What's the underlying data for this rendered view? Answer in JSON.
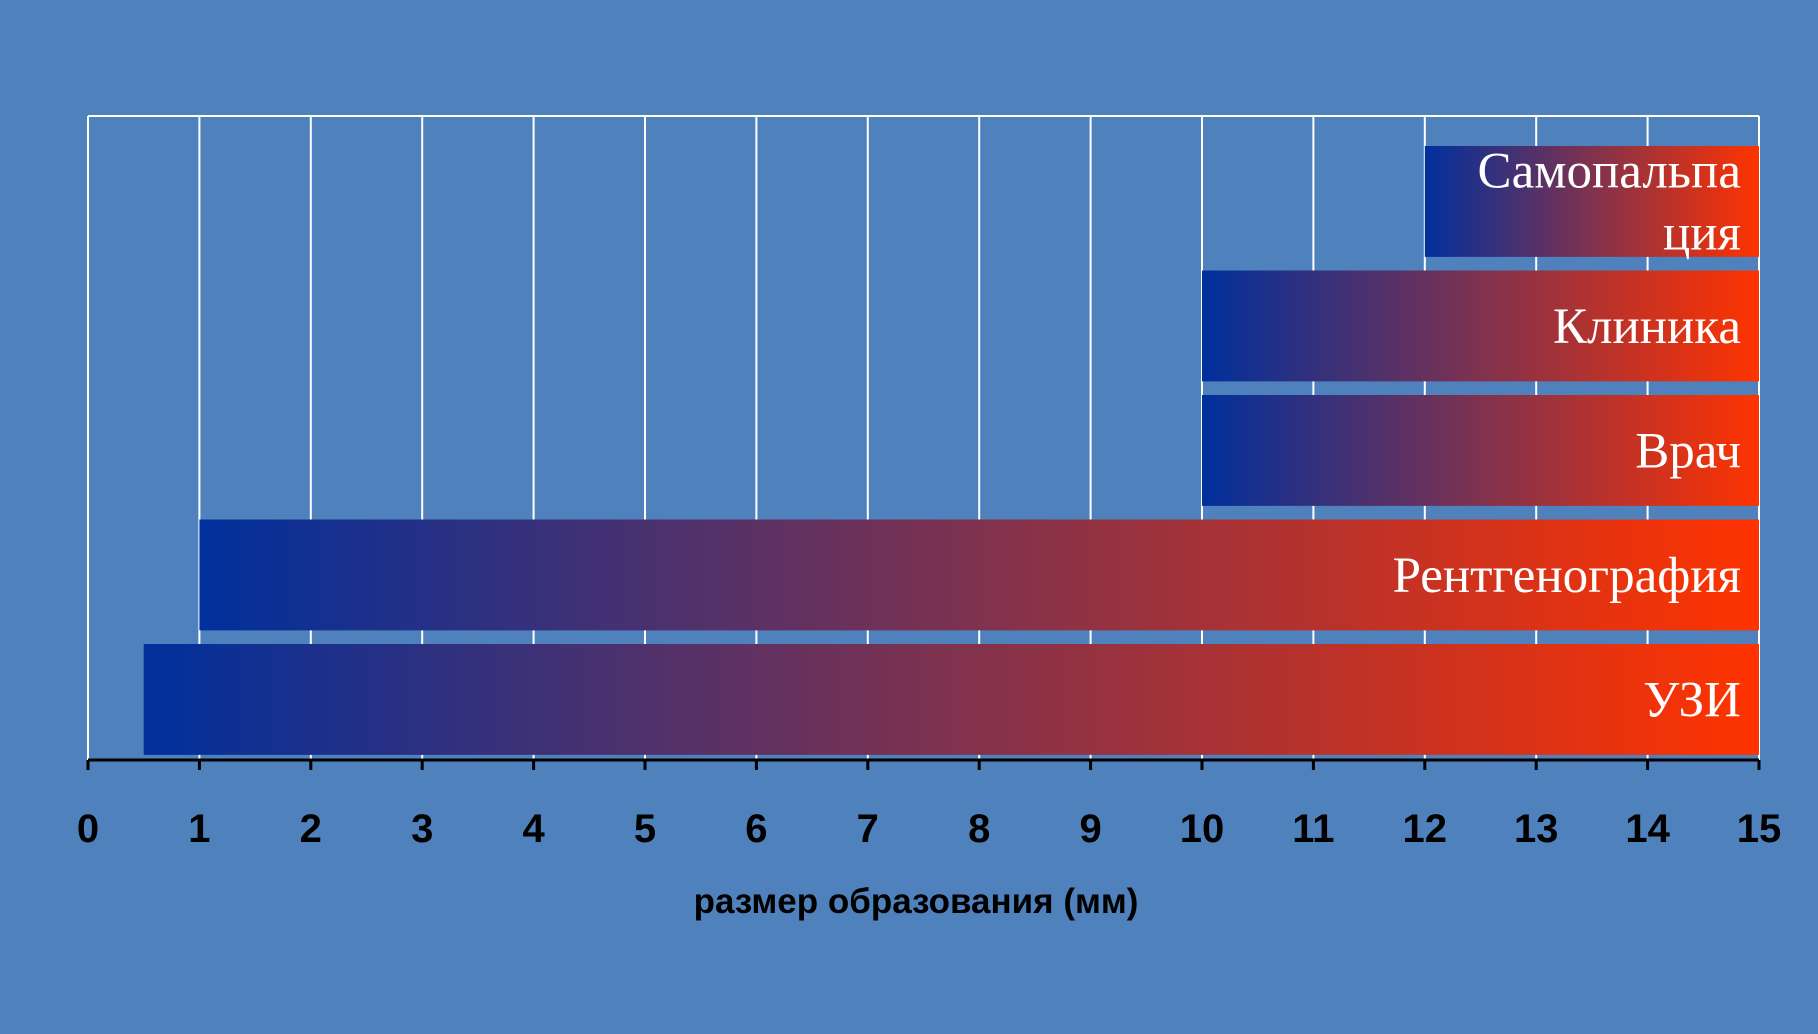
{
  "colors": {
    "background": "#4f81bd",
    "grid": "#ffffff",
    "axis": "#000000",
    "gradient_start": "#00309c",
    "gradient_end": "#ff3300",
    "bar_label": "#ffffff"
  },
  "chart_data": {
    "type": "bar",
    "orientation": "horizontal",
    "title": "",
    "xlabel": "размер образования (мм)",
    "ylabel": "",
    "xlim": [
      0,
      15
    ],
    "x_ticks": [
      "0",
      "1",
      "2",
      "3",
      "4",
      "5",
      "6",
      "7",
      "8",
      "9",
      "10",
      "11",
      "12",
      "13",
      "14",
      "15"
    ],
    "grid": true,
    "categories": [
      "Самопальпация",
      "Клиника",
      "Врач",
      "Рентгенография",
      "УЗИ"
    ],
    "bars": [
      {
        "label_lines": [
          "Самопальпа",
          "ция"
        ],
        "start": 12,
        "end": 15
      },
      {
        "label_lines": [
          "Клиника"
        ],
        "start": 10,
        "end": 15
      },
      {
        "label_lines": [
          "Врач"
        ],
        "start": 10,
        "end": 15
      },
      {
        "label_lines": [
          "Рентгенография"
        ],
        "start": 1,
        "end": 15
      },
      {
        "label_lines": [
          "УЗИ"
        ],
        "start": 0.5,
        "end": 15
      }
    ]
  }
}
